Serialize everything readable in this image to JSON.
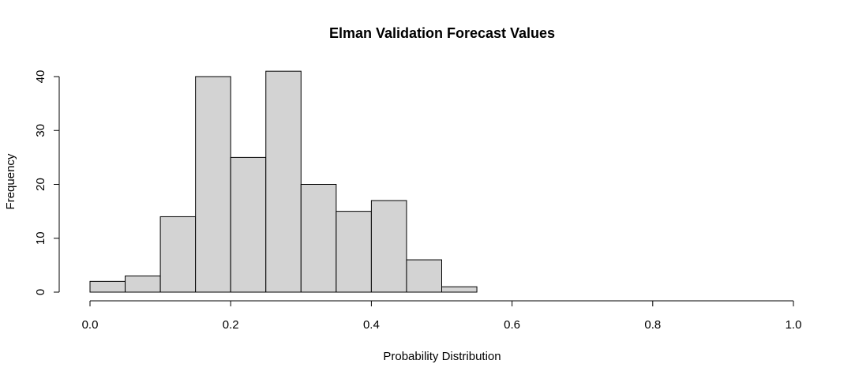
{
  "chart_data": {
    "type": "bar",
    "title": "Elman Validation Forecast Values",
    "xlabel": "Probability Distribution",
    "ylabel": "Frequency",
    "bins": [
      {
        "start": 0.0,
        "end": 0.05,
        "count": 2
      },
      {
        "start": 0.05,
        "end": 0.1,
        "count": 3
      },
      {
        "start": 0.1,
        "end": 0.15,
        "count": 14
      },
      {
        "start": 0.15,
        "end": 0.2,
        "count": 40
      },
      {
        "start": 0.2,
        "end": 0.25,
        "count": 25
      },
      {
        "start": 0.25,
        "end": 0.3,
        "count": 41
      },
      {
        "start": 0.3,
        "end": 0.35,
        "count": 20
      },
      {
        "start": 0.35,
        "end": 0.4,
        "count": 15
      },
      {
        "start": 0.4,
        "end": 0.45,
        "count": 17
      },
      {
        "start": 0.45,
        "end": 0.5,
        "count": 6
      },
      {
        "start": 0.5,
        "end": 0.55,
        "count": 1
      }
    ],
    "xlim": [
      0,
      1
    ],
    "ylim": [
      0,
      40
    ],
    "x_ticks": [
      "0.0",
      "0.2",
      "0.4",
      "0.6",
      "0.8",
      "1.0"
    ],
    "y_ticks": [
      "0",
      "10",
      "20",
      "30",
      "40"
    ],
    "grid": false,
    "legend": "none",
    "colors": {
      "bar_fill": "#d3d3d3",
      "bar_stroke": "#000000"
    }
  }
}
